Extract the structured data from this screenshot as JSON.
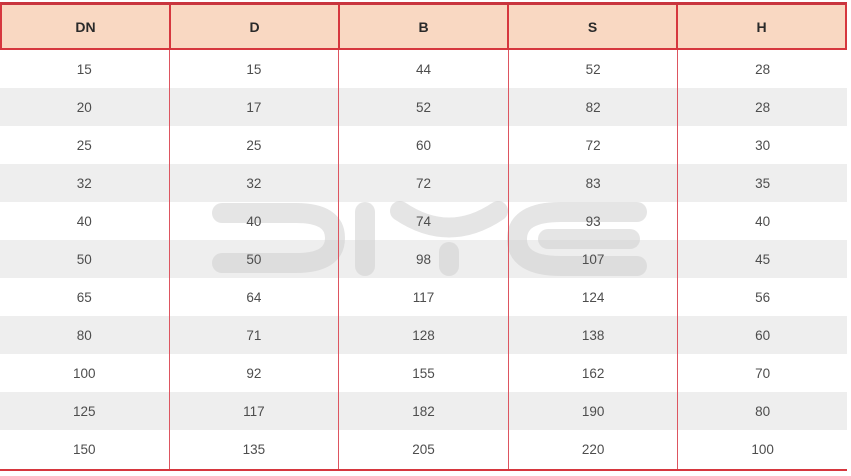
{
  "table": {
    "columns": [
      "DN",
      "D",
      "B",
      "S",
      "H"
    ],
    "rows": [
      [
        "15",
        "15",
        "44",
        "52",
        "28"
      ],
      [
        "20",
        "17",
        "52",
        "82",
        "28"
      ],
      [
        "25",
        "25",
        "60",
        "72",
        "30"
      ],
      [
        "32",
        "32",
        "72",
        "83",
        "35"
      ],
      [
        "40",
        "40",
        "74",
        "93",
        "40"
      ],
      [
        "50",
        "50",
        "98",
        "107",
        "45"
      ],
      [
        "65",
        "64",
        "117",
        "124",
        "56"
      ],
      [
        "80",
        "71",
        "128",
        "138",
        "60"
      ],
      [
        "100",
        "92",
        "155",
        "162",
        "70"
      ],
      [
        "125",
        "117",
        "182",
        "190",
        "80"
      ],
      [
        "150",
        "135",
        "205",
        "220",
        "100"
      ]
    ]
  },
  "watermark": {
    "text": "DIYE"
  },
  "colors": {
    "header_bg": "#f9d8c2",
    "border_red": "#d6373e",
    "divider_red": "#dd5560",
    "row_alt": "#eeeeee",
    "body_text": "#4d4d4d",
    "header_text": "#2a2a2a",
    "watermark_gray": "#cfcfcf"
  }
}
